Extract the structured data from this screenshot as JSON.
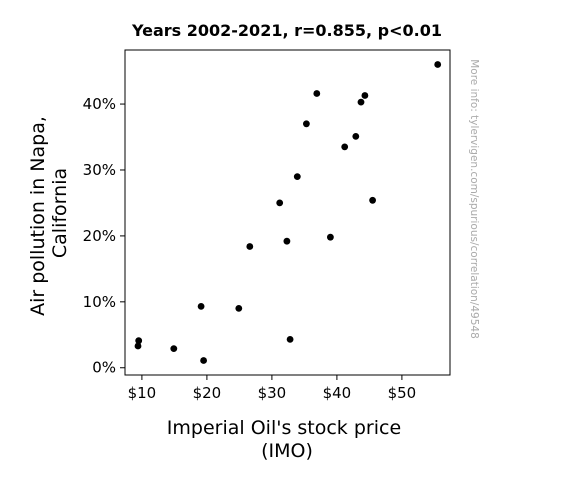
{
  "chart_data": {
    "type": "scatter",
    "title": "Years 2002-2021, r=0.855, p<0.01",
    "xlabel_lines": [
      "Imperial Oil's stock price",
      "(IMO)"
    ],
    "ylabel_lines": [
      "Air pollution in Napa,",
      "California"
    ],
    "watermark": "More info: tylervigen.com/spurious/correlation/49548",
    "xlim": [
      7.4,
      57.4
    ],
    "ylim": [
      -1.1,
      48.2
    ],
    "xticks": [
      10,
      20,
      30,
      40,
      50
    ],
    "xtick_labels": [
      "$10",
      "$20",
      "$30",
      "$40",
      "$50"
    ],
    "yticks": [
      0,
      10,
      20,
      30,
      40
    ],
    "ytick_labels": [
      "0%",
      "10%",
      "20%",
      "30%",
      "40%"
    ],
    "grid": false,
    "marker_color": "#000000",
    "points": [
      {
        "x": 9.5,
        "y": 4.1
      },
      {
        "x": 9.4,
        "y": 3.3
      },
      {
        "x": 14.9,
        "y": 2.9
      },
      {
        "x": 19.1,
        "y": 9.3
      },
      {
        "x": 19.5,
        "y": 1.1
      },
      {
        "x": 24.9,
        "y": 9.0
      },
      {
        "x": 26.6,
        "y": 18.4
      },
      {
        "x": 31.2,
        "y": 25.0
      },
      {
        "x": 32.3,
        "y": 19.2
      },
      {
        "x": 32.8,
        "y": 4.3
      },
      {
        "x": 33.9,
        "y": 29.0
      },
      {
        "x": 35.3,
        "y": 37.0
      },
      {
        "x": 36.9,
        "y": 41.6
      },
      {
        "x": 39.0,
        "y": 19.8
      },
      {
        "x": 41.2,
        "y": 33.5
      },
      {
        "x": 42.9,
        "y": 35.1
      },
      {
        "x": 43.7,
        "y": 40.3
      },
      {
        "x": 44.3,
        "y": 41.3
      },
      {
        "x": 45.5,
        "y": 25.4
      },
      {
        "x": 55.5,
        "y": 46.0
      }
    ]
  }
}
